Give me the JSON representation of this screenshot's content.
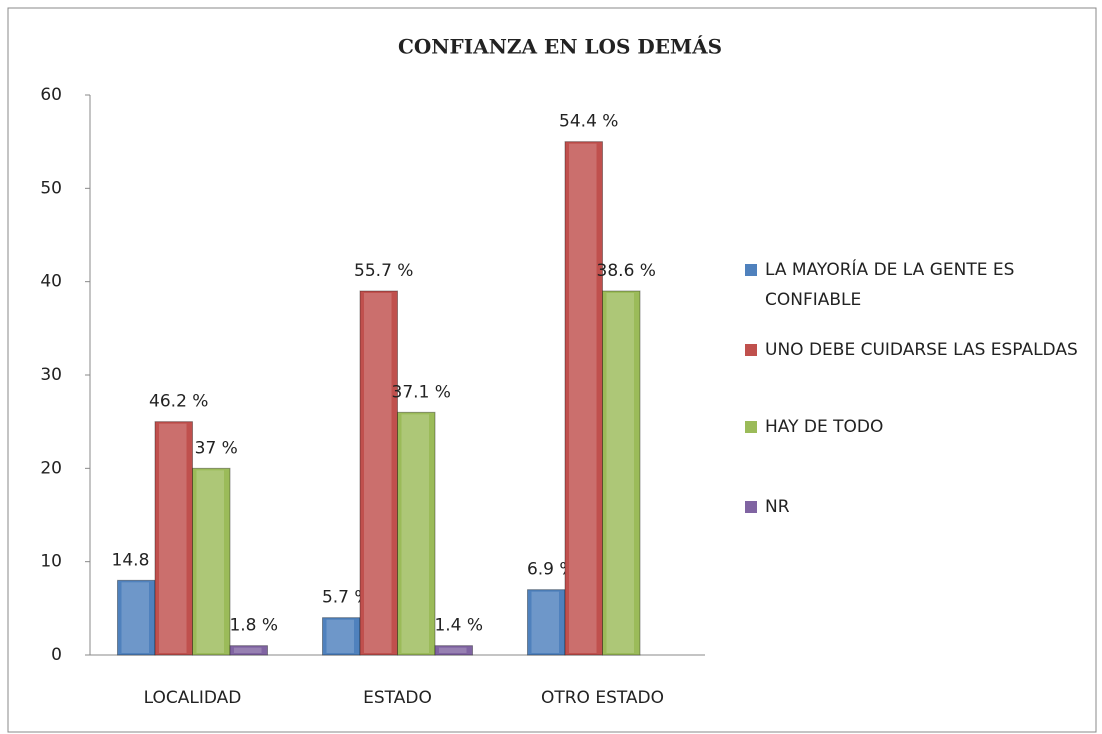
{
  "chart_data": {
    "type": "bar",
    "title": "CONFIANZA EN LOS DEMÁS",
    "categories": [
      "LOCALIDAD",
      "ESTADO",
      "OTRO ESTADO"
    ],
    "series": [
      {
        "name": "LA MAYORÍA DE LA GENTE ES CONFIABLE",
        "color": "#4f81bd",
        "values": [
          8,
          4,
          7
        ],
        "labels": [
          "14.8 %",
          "5.7 %",
          "6.9 %"
        ]
      },
      {
        "name": "UNO DEBE CUIDARSE LAS ESPALDAS",
        "color": "#c0504d",
        "values": [
          25,
          39,
          55
        ],
        "labels": [
          "46.2 %",
          "55.7 %",
          "54.4 %"
        ]
      },
      {
        "name": "HAY DE TODO",
        "color": "#9bbb59",
        "values": [
          20,
          26,
          39
        ],
        "labels": [
          "37 %",
          "37.1 %",
          "38.6 %"
        ]
      },
      {
        "name": "NR",
        "color": "#8064a2",
        "values": [
          1,
          1,
          null
        ],
        "labels": [
          "1.8 %",
          "1.4 %",
          null
        ]
      }
    ],
    "ylim": [
      0,
      60
    ],
    "yticks": [
      0,
      10,
      20,
      30,
      40,
      50,
      60
    ],
    "legend": "right"
  }
}
